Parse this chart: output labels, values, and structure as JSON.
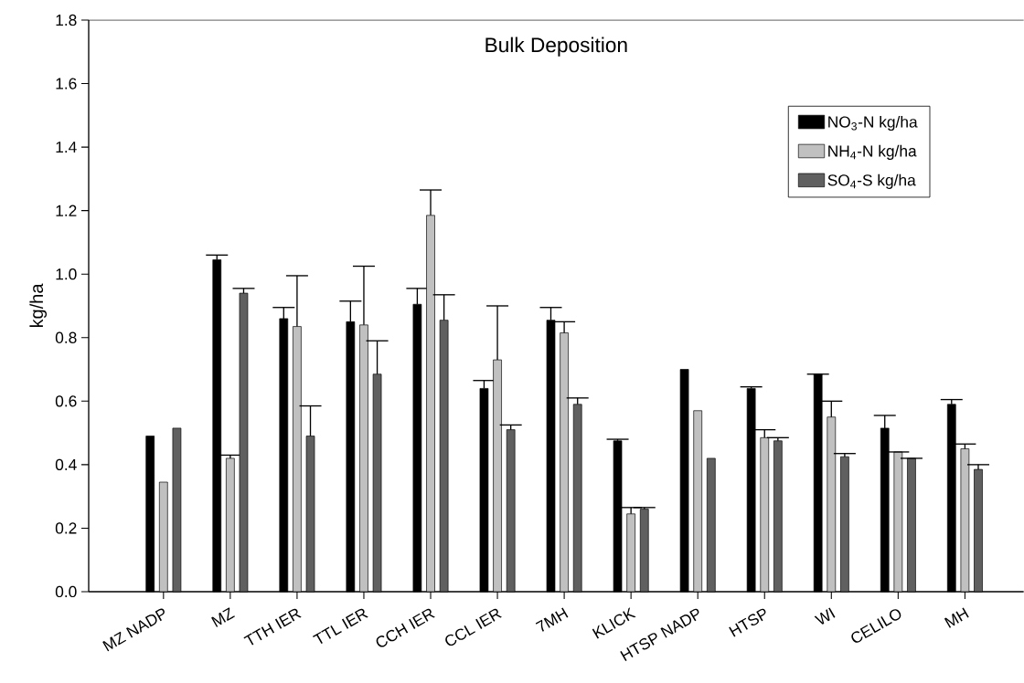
{
  "chart_data": {
    "type": "bar",
    "title": "Bulk Deposition",
    "ylabel": "kg/ha",
    "categories": [
      "MZ NADP",
      "MZ",
      "TTH IER",
      "TTL IER",
      "CCH IER",
      "CCL IER",
      "7MH",
      "KLICK",
      "HTSP NADP",
      "HTSP",
      "WI",
      "CELILO",
      "MH"
    ],
    "series": [
      {
        "name": "NO$_{3}$-N kg/ha",
        "color": "#000000",
        "values": [
          0.49,
          1.045,
          0.86,
          0.85,
          0.905,
          0.64,
          0.855,
          0.475,
          0.7,
          0.64,
          0.685,
          0.515,
          0.59
        ],
        "errors": [
          null,
          [
            1.045,
            1.06
          ],
          [
            0.86,
            0.895
          ],
          [
            0.85,
            0.915
          ],
          [
            0.905,
            0.955
          ],
          [
            0.64,
            0.665
          ],
          [
            0.855,
            0.895
          ],
          [
            0.475,
            0.48
          ],
          null,
          [
            0.64,
            0.645
          ],
          [
            0.685,
            0.685
          ],
          [
            0.515,
            0.555
          ],
          [
            0.59,
            0.605
          ]
        ]
      },
      {
        "name": "NH$_{4}$-N kg/ha",
        "color": "#c0c0c0",
        "values": [
          0.345,
          0.42,
          0.835,
          0.84,
          1.185,
          0.73,
          0.815,
          0.245,
          0.57,
          0.485,
          0.55,
          0.44,
          0.45
        ],
        "errors": [
          null,
          [
            0.42,
            0.43
          ],
          [
            0.835,
            0.995
          ],
          [
            0.84,
            1.025
          ],
          [
            1.185,
            1.265
          ],
          [
            0.73,
            0.9
          ],
          [
            0.815,
            0.85
          ],
          [
            0.245,
            0.265
          ],
          null,
          [
            0.485,
            0.51
          ],
          [
            0.55,
            0.6
          ],
          [
            0.44,
            0.44
          ],
          [
            0.45,
            0.465
          ]
        ]
      },
      {
        "name": "SO$_{4}$-S kg/ha",
        "color": "#606060",
        "values": [
          0.515,
          0.94,
          0.49,
          0.685,
          0.855,
          0.51,
          0.59,
          0.26,
          0.42,
          0.475,
          0.425,
          0.42,
          0.385
        ],
        "errors": [
          null,
          [
            0.94,
            0.955
          ],
          [
            0.49,
            0.585
          ],
          [
            0.685,
            0.79
          ],
          [
            0.855,
            0.935
          ],
          [
            0.51,
            0.525
          ],
          [
            0.59,
            0.61
          ],
          [
            0.26,
            0.265
          ],
          null,
          [
            0.475,
            0.485
          ],
          [
            0.425,
            0.435
          ],
          [
            0.42,
            0.42
          ],
          [
            0.385,
            0.4
          ]
        ]
      }
    ],
    "ylim": [
      0,
      1.8
    ],
    "yticks": [
      {
        "value": 0,
        "label": "0.0"
      },
      {
        "value": 0.2,
        "label": "0.2"
      },
      {
        "value": 0.4,
        "label": "0.4"
      },
      {
        "value": 0.6,
        "label": "0.6"
      },
      {
        "value": 0.8,
        "label": "0.8"
      },
      {
        "value": 1.0,
        "label": "1.0"
      },
      {
        "value": 1.2,
        "label": "1.2"
      },
      {
        "value": 1.4,
        "label": "1.4"
      },
      {
        "value": 1.6,
        "label": "1.6"
      },
      {
        "value": 1.8,
        "label": "1.8"
      }
    ],
    "grid": false,
    "legend": "top right"
  }
}
